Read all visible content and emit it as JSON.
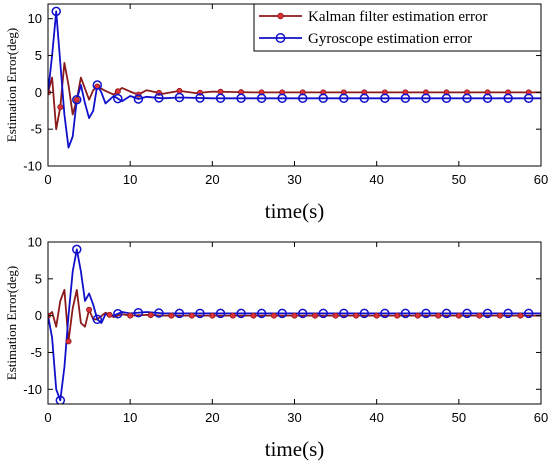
{
  "colors": {
    "kalman": "#8b1a1a",
    "kalman_marker": "#e0303a",
    "gyro": "#1010cc",
    "axes": "#000000",
    "background": "#ffffff"
  },
  "legend": {
    "placement": "top-right (top panel only)",
    "entries": [
      {
        "label": "Kalman filter estimation error",
        "marker": "filled-dot"
      },
      {
        "label": "Gyroscope estimation error",
        "marker": "open-circle"
      }
    ]
  },
  "chart_data": [
    {
      "type": "line",
      "xlabel": "time(s)",
      "ylabel": "Estimation Error(deg)",
      "xlim": [
        0,
        60
      ],
      "ylim": [
        -10,
        12
      ],
      "xticks": [
        "0",
        "10",
        "20",
        "30",
        "40",
        "50",
        "60"
      ],
      "yticks": [
        "-10",
        "-5",
        "0",
        "5",
        "10"
      ],
      "grid": false,
      "series": [
        {
          "name": "Kalman filter estimation error",
          "x": [
            0,
            0.5,
            1,
            1.5,
            2,
            2.5,
            3,
            3.5,
            4,
            4.5,
            5,
            5.5,
            6,
            7,
            8,
            9,
            10,
            11,
            12,
            14,
            16,
            18,
            20,
            25,
            30,
            40,
            50,
            60
          ],
          "y": [
            0,
            2,
            -5,
            -2,
            4,
            1,
            -3,
            -1,
            2,
            0.5,
            -1,
            0.3,
            0.8,
            0.2,
            -0.3,
            0.6,
            0.1,
            -0.3,
            0.3,
            -0.2,
            0.2,
            -0.1,
            0.1,
            0,
            0,
            0,
            0,
            0
          ]
        },
        {
          "name": "Gyroscope estimation error",
          "x": [
            0,
            0.5,
            1,
            1.5,
            2,
            2.5,
            3,
            3.5,
            4,
            4.5,
            5,
            5.5,
            6,
            6.5,
            7,
            8,
            9,
            10,
            11,
            12,
            14,
            16,
            20,
            30,
            40,
            50,
            60
          ],
          "y": [
            0,
            5,
            11,
            4,
            -3,
            -7.5,
            -6,
            -1,
            1,
            -1.5,
            -3.5,
            -2.5,
            1,
            0,
            -1.5,
            -0.5,
            -1.2,
            -0.5,
            -0.9,
            -0.6,
            -0.8,
            -0.7,
            -0.8,
            -0.8,
            -0.8,
            -0.8,
            -0.8
          ]
        }
      ]
    },
    {
      "type": "line",
      "xlabel": "time(s)",
      "ylabel": "Estimation Error(deg)",
      "xlim": [
        0,
        60
      ],
      "ylim": [
        -12,
        10
      ],
      "xticks": [
        "0",
        "10",
        "20",
        "30",
        "40",
        "50",
        "60"
      ],
      "yticks": [
        "-10",
        "-5",
        "0",
        "5",
        "10"
      ],
      "grid": false,
      "series": [
        {
          "name": "Kalman filter estimation error",
          "x": [
            0,
            0.5,
            1,
            1.5,
            2,
            2.5,
            3,
            3.5,
            4,
            4.5,
            5,
            5.5,
            6,
            7,
            8,
            9,
            10,
            12,
            14,
            20,
            30,
            40,
            50,
            60
          ],
          "y": [
            0,
            0.5,
            -1.5,
            2,
            3.5,
            -3.5,
            1,
            3.5,
            -1,
            -1.5,
            0.8,
            -0.5,
            -0.5,
            0.4,
            -0.2,
            0.2,
            0,
            0.1,
            0,
            0,
            0,
            0,
            0,
            0
          ]
        },
        {
          "name": "Gyroscope estimation error",
          "x": [
            0,
            0.5,
            1,
            1.5,
            2,
            2.5,
            3,
            3.5,
            4,
            4.5,
            5,
            5.5,
            6,
            6.5,
            7,
            8,
            9,
            10,
            12,
            14,
            20,
            30,
            40,
            50,
            60
          ],
          "y": [
            0,
            -3,
            -10,
            -11.5,
            -7,
            0,
            6,
            9,
            6,
            2,
            3,
            1.5,
            -0.5,
            -1,
            0.2,
            0,
            0.5,
            0.3,
            0.5,
            0.3,
            0.3,
            0.3,
            0.3,
            0.3,
            0.3
          ]
        }
      ]
    }
  ]
}
